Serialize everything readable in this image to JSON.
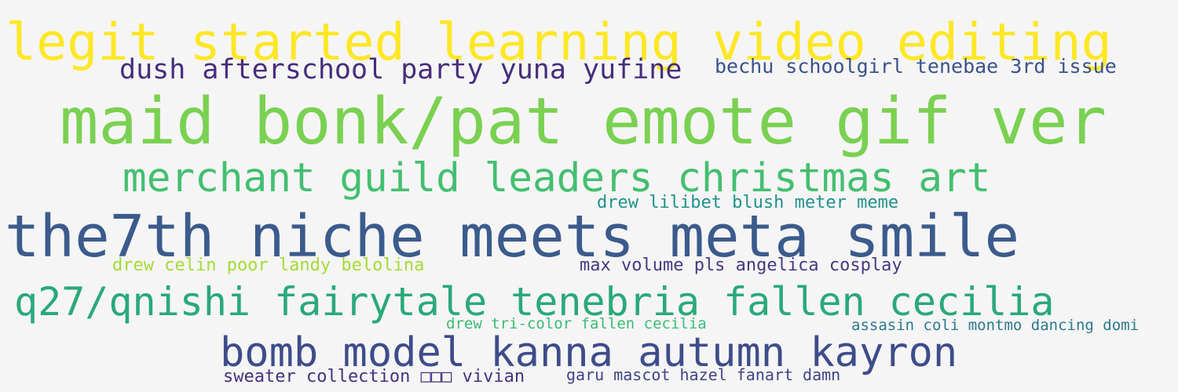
{
  "words": [
    {
      "text": "legit started learning video editing",
      "color": "#fde725"
    },
    {
      "text": "dush afterschool party yuna yufine",
      "color": "#472d7b"
    },
    {
      "text": "bechu schoolgirl tenebae 3rd issue",
      "color": "#3b528b"
    },
    {
      "text": "maid bonk/pat emote gif ver",
      "color": "#7ad151"
    },
    {
      "text": "merchant guild leaders christmas art",
      "color": "#44bf70"
    },
    {
      "text": "drew lilibet blush meter meme",
      "color": "#21918c"
    },
    {
      "text": "the7th niche meets meta smile",
      "color": "#3b5b8c"
    },
    {
      "text": "drew celin poor landy belolina",
      "color": "#a5db36"
    },
    {
      "text": "max volume pls angelica cosplay",
      "color": "#443983"
    },
    {
      "text": "q27/qnishi fairytale tenebria fallen cecilia",
      "color": "#2aa97a"
    },
    {
      "text": "drew tri-color fallen cecilia",
      "color": "#3cbb75"
    },
    {
      "text": "assasin coli montmo dancing domi",
      "color": "#2a788e"
    },
    {
      "text": "bomb model kanna autumn kayron",
      "color": "#3e4c8a"
    },
    {
      "text": "sweater collection □□□ vivian",
      "color": "#46327e"
    },
    {
      "text": "garu mascot hazel fanart damn",
      "color": "#414487"
    }
  ]
}
